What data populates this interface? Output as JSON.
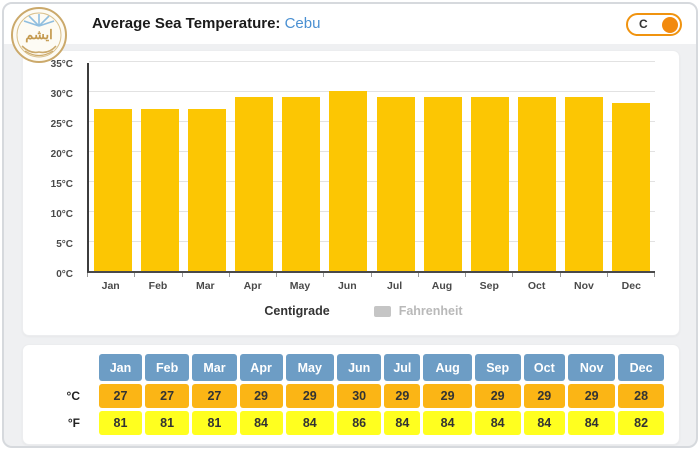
{
  "header": {
    "title": "Average Sea Temperature:",
    "location": "Cebu",
    "logo_text": "ايشم",
    "unit_toggle": {
      "label": "C"
    }
  },
  "chart_data": {
    "type": "bar",
    "title": "Average Sea Temperature: Cebu",
    "categories": [
      "Jan",
      "Feb",
      "Mar",
      "Apr",
      "May",
      "Jun",
      "Jul",
      "Aug",
      "Sep",
      "Oct",
      "Nov",
      "Dec"
    ],
    "series": [
      {
        "name": "Centigrade",
        "row_label": "°C",
        "values": [
          27,
          27,
          27,
          29,
          29,
          30,
          29,
          29,
          29,
          29,
          29,
          28
        ],
        "color": "#FCC603",
        "row_color": "#FBB515",
        "active": true
      },
      {
        "name": "Fahrenheit",
        "row_label": "°F",
        "values": [
          81,
          81,
          81,
          84,
          84,
          86,
          84,
          84,
          84,
          84,
          84,
          82
        ],
        "color": "#C5C5C5",
        "row_color": "#FFFF1F",
        "active": false
      }
    ],
    "ylim": [
      0,
      35
    ],
    "y_tick_step": 5,
    "y_tick_labels": [
      "0°C",
      "5°C",
      "10°C",
      "15°C",
      "20°C",
      "25°C",
      "30°C",
      "35°C"
    ],
    "grid": true,
    "legend_position": "bottom"
  },
  "table": {
    "header_color": "#6D9DC5"
  },
  "colors": {
    "widget_bg": "#EFF0F2",
    "widget_border": "#D6D9DD",
    "bar": "#FCC603",
    "toggle_orange": "#F28A0E",
    "location_link": "#4A90D2",
    "table_header_blue": "#6D9DC5",
    "celsius_row": "#FBB515",
    "fahrenheit_row": "#FFFF1F"
  }
}
